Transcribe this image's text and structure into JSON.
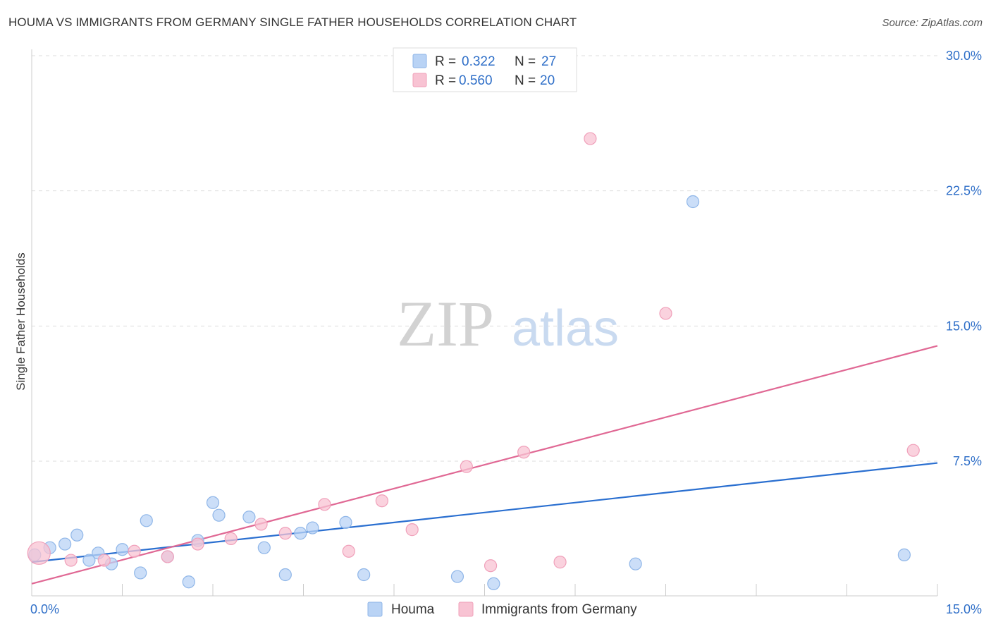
{
  "header": {
    "title": "HOUMA VS IMMIGRANTS FROM GERMANY SINGLE FATHER HOUSEHOLDS CORRELATION CHART",
    "source": "Source: ZipAtlas.com"
  },
  "watermark": {
    "zip": "ZIP",
    "atlas": "atlas"
  },
  "legend_box": {
    "rows": [
      {
        "r_label": "R = ",
        "r_value": "0.322",
        "n_label": "N = ",
        "n_value": "27"
      },
      {
        "r_label": "R = ",
        "r_value": "0.560",
        "n_label": "N = ",
        "n_value": "20"
      }
    ]
  },
  "colors": {
    "houma_fill": "#b9d3f5",
    "houma_stroke": "#8fb6e8",
    "houma_line": "#2a6fd0",
    "germany_fill": "#f8c3d3",
    "germany_stroke": "#f0a0ba",
    "germany_line": "#e06894",
    "value_text": "#2f6fc8",
    "grid": "#dddddd"
  },
  "chart_data": {
    "type": "scatter",
    "title": "HOUMA VS IMMIGRANTS FROM GERMANY SINGLE FATHER HOUSEHOLDS CORRELATION CHART",
    "xlabel": "",
    "ylabel": "Single Father Households",
    "xlim": [
      0,
      15
    ],
    "ylim": [
      0,
      31
    ],
    "x_tick_labels": [
      {
        "value": 0,
        "label": "0.0%"
      },
      {
        "value": 15,
        "label": "15.0%"
      }
    ],
    "y_tick_labels": [
      {
        "value": 7.5,
        "label": "7.5%"
      },
      {
        "value": 15,
        "label": "15.0%"
      },
      {
        "value": 22.5,
        "label": "22.5%"
      },
      {
        "value": 30,
        "label": "30.0%"
      }
    ],
    "grid": true,
    "legend_position": "bottom-center",
    "series": [
      {
        "name": "Houma",
        "r": 0.322,
        "n": 27,
        "trend": [
          [
            0,
            1.9
          ],
          [
            15,
            7.4
          ]
        ],
        "points": [
          [
            0.05,
            2.3
          ],
          [
            0.3,
            2.7
          ],
          [
            0.55,
            2.9
          ],
          [
            0.75,
            3.4
          ],
          [
            0.95,
            2.0
          ],
          [
            1.1,
            2.4
          ],
          [
            1.32,
            1.8
          ],
          [
            1.5,
            2.6
          ],
          [
            1.8,
            1.3
          ],
          [
            1.9,
            4.2
          ],
          [
            2.25,
            2.2
          ],
          [
            2.6,
            0.8
          ],
          [
            2.75,
            3.1
          ],
          [
            3.0,
            5.2
          ],
          [
            3.1,
            4.5
          ],
          [
            3.6,
            4.4
          ],
          [
            3.85,
            2.7
          ],
          [
            4.2,
            1.2
          ],
          [
            4.45,
            3.5
          ],
          [
            4.65,
            3.8
          ],
          [
            5.2,
            4.1
          ],
          [
            5.5,
            1.2
          ],
          [
            7.05,
            1.1
          ],
          [
            7.65,
            0.7
          ],
          [
            10.0,
            1.8
          ],
          [
            10.95,
            21.9
          ],
          [
            14.45,
            2.3
          ]
        ]
      },
      {
        "name": "Immigrants from Germany",
        "r": 0.56,
        "n": 20,
        "trend": [
          [
            0,
            0.7
          ],
          [
            15,
            13.9
          ]
        ],
        "points": [
          [
            0.12,
            2.4
          ],
          [
            0.65,
            2.0
          ],
          [
            1.2,
            2.0
          ],
          [
            1.7,
            2.5
          ],
          [
            2.25,
            2.2
          ],
          [
            2.75,
            2.9
          ],
          [
            3.3,
            3.2
          ],
          [
            3.8,
            4.0
          ],
          [
            4.2,
            3.5
          ],
          [
            4.85,
            5.1
          ],
          [
            5.25,
            2.5
          ],
          [
            5.8,
            5.3
          ],
          [
            6.3,
            3.7
          ],
          [
            7.2,
            7.2
          ],
          [
            7.6,
            1.7
          ],
          [
            8.15,
            8.0
          ],
          [
            8.75,
            1.9
          ],
          [
            9.25,
            25.4
          ],
          [
            10.5,
            15.7
          ],
          [
            14.6,
            8.1
          ]
        ]
      }
    ]
  }
}
